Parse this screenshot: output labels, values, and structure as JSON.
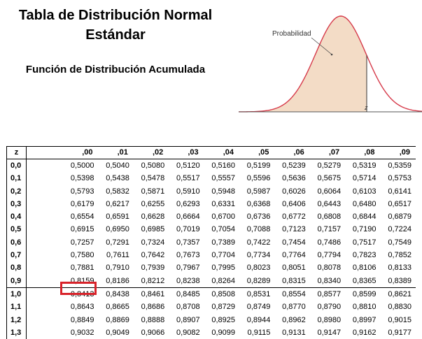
{
  "header": {
    "title_line1": "Tabla de Distribución Normal",
    "title_line2": "Estándar",
    "subtitle": "Función de Distribución Acumulada"
  },
  "figure": {
    "label": "Probabilidad",
    "z_label": "z",
    "fill_color": "#f3dcc6",
    "curve_color": "#d63a4a"
  },
  "table": {
    "z_header": "z",
    "columns": [
      ",00",
      ",01",
      ",02",
      ",03",
      ",04",
      ",05",
      ",06",
      ",07",
      ",08",
      ",09"
    ],
    "rows": [
      {
        "z": "0,0",
        "values": [
          "0,5000",
          "0,5040",
          "0,5080",
          "0,5120",
          "0,5160",
          "0,5199",
          "0,5239",
          "0,5279",
          "0,5319",
          "0,5359"
        ]
      },
      {
        "z": "0,1",
        "values": [
          "0,5398",
          "0,5438",
          "0,5478",
          "0,5517",
          "0,5557",
          "0,5596",
          "0,5636",
          "0,5675",
          "0,5714",
          "0,5753"
        ]
      },
      {
        "z": "0,2",
        "values": [
          "0,5793",
          "0,5832",
          "0,5871",
          "0,5910",
          "0,5948",
          "0,5987",
          "0,6026",
          "0,6064",
          "0,6103",
          "0,6141"
        ]
      },
      {
        "z": "0,3",
        "values": [
          "0,6179",
          "0,6217",
          "0,6255",
          "0,6293",
          "0,6331",
          "0,6368",
          "0,6406",
          "0,6443",
          "0,6480",
          "0,6517"
        ]
      },
      {
        "z": "0,4",
        "values": [
          "0,6554",
          "0,6591",
          "0,6628",
          "0,6664",
          "0,6700",
          "0,6736",
          "0,6772",
          "0,6808",
          "0,6844",
          "0,6879"
        ]
      },
      {
        "z": "0,5",
        "values": [
          "0,6915",
          "0,6950",
          "0,6985",
          "0,7019",
          "0,7054",
          "0,7088",
          "0,7123",
          "0,7157",
          "0,7190",
          "0,7224"
        ]
      },
      {
        "z": "0,6",
        "values": [
          "0,7257",
          "0,7291",
          "0,7324",
          "0,7357",
          "0,7389",
          "0,7422",
          "0,7454",
          "0,7486",
          "0,7517",
          "0,7549"
        ]
      },
      {
        "z": "0,7",
        "values": [
          "0,7580",
          "0,7611",
          "0,7642",
          "0,7673",
          "0,7704",
          "0,7734",
          "0,7764",
          "0,7794",
          "0,7823",
          "0,7852"
        ]
      },
      {
        "z": "0,8",
        "values": [
          "0,7881",
          "0,7910",
          "0,7939",
          "0,7967",
          "0,7995",
          "0,8023",
          "0,8051",
          "0,8078",
          "0,8106",
          "0,8133"
        ]
      },
      {
        "z": "0,9",
        "values": [
          "0,8159",
          "0,8186",
          "0,8212",
          "0,8238",
          "0,8264",
          "0,8289",
          "0,8315",
          "0,8340",
          "0,8365",
          "0,8389"
        ]
      },
      {
        "z": "1,0",
        "values": [
          "0,8413",
          "0,8438",
          "0,8461",
          "0,8485",
          "0,8508",
          "0,8531",
          "0,8554",
          "0,8577",
          "0,8599",
          "0,8621"
        ]
      },
      {
        "z": "1,1",
        "values": [
          "0,8643",
          "0,8665",
          "0,8686",
          "0,8708",
          "0,8729",
          "0,8749",
          "0,8770",
          "0,8790",
          "0,8810",
          "0,8830"
        ]
      },
      {
        "z": "1,2",
        "values": [
          "0,8849",
          "0,8869",
          "0,8888",
          "0,8907",
          "0,8925",
          "0,8944",
          "0,8962",
          "0,8980",
          "0,8997",
          "0,9015"
        ]
      },
      {
        "z": "1,3",
        "values": [
          "0,9032",
          "0,9049",
          "0,9066",
          "0,9082",
          "0,9099",
          "0,9115",
          "0,9131",
          "0,9147",
          "0,9162",
          "0,9177"
        ]
      }
    ],
    "highlight_color": "#d8232a"
  }
}
